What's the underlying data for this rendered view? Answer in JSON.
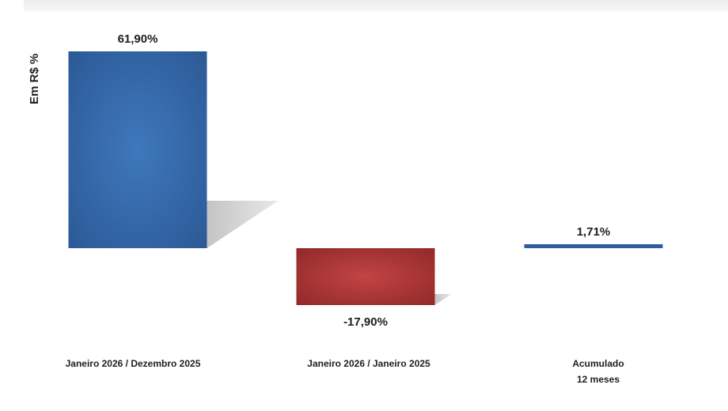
{
  "chart_data": {
    "type": "bar",
    "ylabel": "Em R$ %",
    "categories": [
      [
        "Janeiro 2026 / Dezembro 2025"
      ],
      [
        "Janeiro 2026 / Janeiro 2025"
      ],
      [
        "Acumulado",
        "12 meses"
      ]
    ],
    "values": [
      61.9,
      -17.9,
      1.71
    ],
    "data_labels": [
      "61,90%",
      "-17,90%",
      "1,71%"
    ],
    "ylim": [
      -17.9,
      61.9
    ],
    "grid": false,
    "colors": {
      "positive": "#2f5c9e",
      "negative": "#a12f2f"
    }
  }
}
